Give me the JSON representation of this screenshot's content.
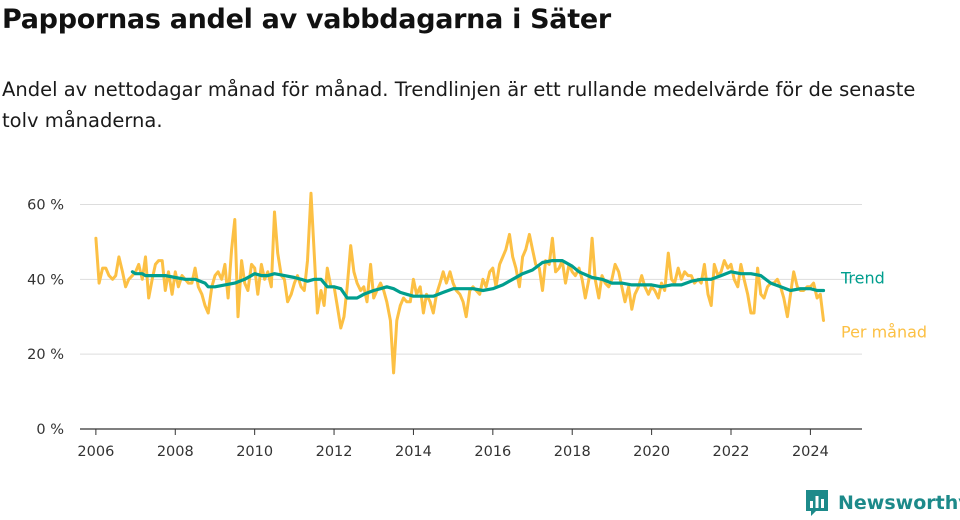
{
  "chart_data": {
    "type": "line",
    "title": "Pappornas andel av vabbdagarna i Säter",
    "subtitle": "Andel av nettodagar månad för månad. Trendlinjen är ett rullande medelvärde för de senaste tolv månaderna.",
    "xlim": [
      2005.6,
      2025.3
    ],
    "ylim": [
      0,
      62
    ],
    "x_ticks": [
      2006,
      2008,
      2010,
      2012,
      2014,
      2016,
      2018,
      2020,
      2022,
      2024
    ],
    "x_tick_labels": [
      "2006",
      "2008",
      "2010",
      "2012",
      "2014",
      "2016",
      "2018",
      "2020",
      "2022",
      "2024"
    ],
    "y_ticks": [
      0,
      20,
      40,
      60
    ],
    "y_tick_labels": [
      "0 %",
      "20 %",
      "40 %",
      "60 %"
    ],
    "grid": "horizontal",
    "series": [
      {
        "name": "Per månad",
        "color": "#fcc044",
        "points": [
          [
            2006.0,
            51
          ],
          [
            2006.08,
            39
          ],
          [
            2006.17,
            43
          ],
          [
            2006.25,
            43
          ],
          [
            2006.33,
            41
          ],
          [
            2006.42,
            40
          ],
          [
            2006.5,
            41
          ],
          [
            2006.58,
            46
          ],
          [
            2006.67,
            42
          ],
          [
            2006.75,
            38
          ],
          [
            2006.83,
            40
          ],
          [
            2006.92,
            41
          ],
          [
            2007.0,
            42
          ],
          [
            2007.08,
            44
          ],
          [
            2007.17,
            40
          ],
          [
            2007.25,
            46
          ],
          [
            2007.33,
            35
          ],
          [
            2007.42,
            40
          ],
          [
            2007.5,
            44
          ],
          [
            2007.58,
            45
          ],
          [
            2007.67,
            45
          ],
          [
            2007.75,
            37
          ],
          [
            2007.83,
            42
          ],
          [
            2007.92,
            36
          ],
          [
            2008.0,
            42
          ],
          [
            2008.08,
            38
          ],
          [
            2008.17,
            41
          ],
          [
            2008.25,
            40
          ],
          [
            2008.33,
            39
          ],
          [
            2008.42,
            39
          ],
          [
            2008.5,
            43
          ],
          [
            2008.58,
            38
          ],
          [
            2008.67,
            36
          ],
          [
            2008.75,
            33
          ],
          [
            2008.83,
            31
          ],
          [
            2008.92,
            38
          ],
          [
            2009.0,
            41
          ],
          [
            2009.08,
            42
          ],
          [
            2009.17,
            40
          ],
          [
            2009.25,
            44
          ],
          [
            2009.33,
            35
          ],
          [
            2009.42,
            48
          ],
          [
            2009.5,
            56
          ],
          [
            2009.58,
            30
          ],
          [
            2009.67,
            45
          ],
          [
            2009.75,
            39
          ],
          [
            2009.83,
            37
          ],
          [
            2009.92,
            44
          ],
          [
            2010.0,
            43
          ],
          [
            2010.08,
            36
          ],
          [
            2010.17,
            44
          ],
          [
            2010.25,
            40
          ],
          [
            2010.33,
            42
          ],
          [
            2010.42,
            38
          ],
          [
            2010.5,
            58
          ],
          [
            2010.58,
            47
          ],
          [
            2010.67,
            41
          ],
          [
            2010.75,
            40
          ],
          [
            2010.83,
            34
          ],
          [
            2010.92,
            36
          ],
          [
            2011.0,
            39
          ],
          [
            2011.08,
            41
          ],
          [
            2011.17,
            38
          ],
          [
            2011.25,
            37
          ],
          [
            2011.33,
            45
          ],
          [
            2011.42,
            63
          ],
          [
            2011.5,
            47
          ],
          [
            2011.58,
            31
          ],
          [
            2011.67,
            37
          ],
          [
            2011.75,
            33
          ],
          [
            2011.83,
            43
          ],
          [
            2011.92,
            38
          ],
          [
            2012.0,
            38
          ],
          [
            2012.08,
            33
          ],
          [
            2012.17,
            27
          ],
          [
            2012.25,
            30
          ],
          [
            2012.33,
            38
          ],
          [
            2012.42,
            49
          ],
          [
            2012.5,
            42
          ],
          [
            2012.58,
            39
          ],
          [
            2012.67,
            37
          ],
          [
            2012.75,
            38
          ],
          [
            2012.83,
            34
          ],
          [
            2012.92,
            44
          ],
          [
            2013.0,
            35
          ],
          [
            2013.08,
            37
          ],
          [
            2013.17,
            39
          ],
          [
            2013.25,
            37
          ],
          [
            2013.33,
            34
          ],
          [
            2013.42,
            29
          ],
          [
            2013.5,
            15
          ],
          [
            2013.58,
            29
          ],
          [
            2013.67,
            33
          ],
          [
            2013.75,
            35
          ],
          [
            2013.83,
            34
          ],
          [
            2013.92,
            34
          ],
          [
            2014.0,
            40
          ],
          [
            2014.08,
            36
          ],
          [
            2014.17,
            38
          ],
          [
            2014.25,
            31
          ],
          [
            2014.33,
            36
          ],
          [
            2014.42,
            34
          ],
          [
            2014.5,
            31
          ],
          [
            2014.58,
            36
          ],
          [
            2014.67,
            39
          ],
          [
            2014.75,
            42
          ],
          [
            2014.83,
            39
          ],
          [
            2014.92,
            42
          ],
          [
            2015.0,
            39
          ],
          [
            2015.08,
            37
          ],
          [
            2015.17,
            36
          ],
          [
            2015.25,
            34
          ],
          [
            2015.33,
            30
          ],
          [
            2015.42,
            37
          ],
          [
            2015.5,
            38
          ],
          [
            2015.58,
            37
          ],
          [
            2015.67,
            36
          ],
          [
            2015.75,
            40
          ],
          [
            2015.83,
            38
          ],
          [
            2015.92,
            42
          ],
          [
            2016.0,
            43
          ],
          [
            2016.08,
            38
          ],
          [
            2016.17,
            44
          ],
          [
            2016.25,
            46
          ],
          [
            2016.33,
            48
          ],
          [
            2016.42,
            52
          ],
          [
            2016.5,
            46
          ],
          [
            2016.58,
            43
          ],
          [
            2016.67,
            38
          ],
          [
            2016.75,
            46
          ],
          [
            2016.83,
            48
          ],
          [
            2016.92,
            52
          ],
          [
            2017.0,
            48
          ],
          [
            2017.08,
            44
          ],
          [
            2017.17,
            43
          ],
          [
            2017.25,
            37
          ],
          [
            2017.33,
            45
          ],
          [
            2017.42,
            44
          ],
          [
            2017.5,
            51
          ],
          [
            2017.58,
            42
          ],
          [
            2017.67,
            43
          ],
          [
            2017.75,
            45
          ],
          [
            2017.83,
            39
          ],
          [
            2017.92,
            44
          ],
          [
            2018.0,
            42
          ],
          [
            2018.08,
            41
          ],
          [
            2018.17,
            43
          ],
          [
            2018.25,
            40
          ],
          [
            2018.33,
            35
          ],
          [
            2018.42,
            40
          ],
          [
            2018.5,
            51
          ],
          [
            2018.58,
            40
          ],
          [
            2018.67,
            35
          ],
          [
            2018.75,
            41
          ],
          [
            2018.83,
            39
          ],
          [
            2018.92,
            38
          ],
          [
            2019.0,
            40
          ],
          [
            2019.08,
            44
          ],
          [
            2019.17,
            42
          ],
          [
            2019.25,
            38
          ],
          [
            2019.33,
            34
          ],
          [
            2019.42,
            38
          ],
          [
            2019.5,
            32
          ],
          [
            2019.58,
            36
          ],
          [
            2019.67,
            38
          ],
          [
            2019.75,
            41
          ],
          [
            2019.83,
            38
          ],
          [
            2019.92,
            36
          ],
          [
            2020.0,
            38
          ],
          [
            2020.08,
            37
          ],
          [
            2020.17,
            35
          ],
          [
            2020.25,
            39
          ],
          [
            2020.33,
            37
          ],
          [
            2020.42,
            47
          ],
          [
            2020.5,
            40
          ],
          [
            2020.58,
            39
          ],
          [
            2020.67,
            43
          ],
          [
            2020.75,
            40
          ],
          [
            2020.83,
            42
          ],
          [
            2020.92,
            41
          ],
          [
            2021.0,
            41
          ],
          [
            2021.08,
            39
          ],
          [
            2021.17,
            40
          ],
          [
            2021.25,
            39
          ],
          [
            2021.33,
            44
          ],
          [
            2021.42,
            36
          ],
          [
            2021.5,
            33
          ],
          [
            2021.58,
            44
          ],
          [
            2021.67,
            41
          ],
          [
            2021.75,
            42
          ],
          [
            2021.83,
            45
          ],
          [
            2021.92,
            43
          ],
          [
            2022.0,
            44
          ],
          [
            2022.08,
            40
          ],
          [
            2022.17,
            38
          ],
          [
            2022.25,
            44
          ],
          [
            2022.33,
            40
          ],
          [
            2022.42,
            36
          ],
          [
            2022.5,
            31
          ],
          [
            2022.58,
            31
          ],
          [
            2022.67,
            43
          ],
          [
            2022.75,
            36
          ],
          [
            2022.83,
            35
          ],
          [
            2022.92,
            38
          ],
          [
            2023.0,
            39
          ],
          [
            2023.08,
            39
          ],
          [
            2023.17,
            40
          ],
          [
            2023.25,
            38
          ],
          [
            2023.33,
            35
          ],
          [
            2023.42,
            30
          ],
          [
            2023.5,
            36
          ],
          [
            2023.58,
            42
          ],
          [
            2023.67,
            38
          ],
          [
            2023.75,
            37
          ],
          [
            2023.83,
            37
          ],
          [
            2023.92,
            38
          ],
          [
            2024.0,
            38
          ],
          [
            2024.08,
            39
          ],
          [
            2024.17,
            35
          ],
          [
            2024.25,
            36
          ],
          [
            2024.33,
            29
          ]
        ]
      },
      {
        "name": "Trend",
        "color": "#009e8e",
        "points": [
          [
            2006.92,
            42
          ],
          [
            2007.0,
            41.5
          ],
          [
            2007.17,
            41.5
          ],
          [
            2007.25,
            41
          ],
          [
            2007.5,
            41
          ],
          [
            2007.75,
            41
          ],
          [
            2008.0,
            40.5
          ],
          [
            2008.25,
            40
          ],
          [
            2008.5,
            40
          ],
          [
            2008.75,
            39
          ],
          [
            2008.83,
            38
          ],
          [
            2009.0,
            38
          ],
          [
            2009.25,
            38.5
          ],
          [
            2009.5,
            39
          ],
          [
            2009.75,
            40
          ],
          [
            2010.0,
            41.5
          ],
          [
            2010.17,
            41
          ],
          [
            2010.33,
            41
          ],
          [
            2010.5,
            41.5
          ],
          [
            2010.75,
            41
          ],
          [
            2011.0,
            40.5
          ],
          [
            2011.17,
            40
          ],
          [
            2011.33,
            39.5
          ],
          [
            2011.5,
            40
          ],
          [
            2011.67,
            40
          ],
          [
            2011.83,
            38
          ],
          [
            2012.0,
            38
          ],
          [
            2012.17,
            37.5
          ],
          [
            2012.33,
            35
          ],
          [
            2012.58,
            35
          ],
          [
            2012.75,
            36
          ],
          [
            2013.0,
            37
          ],
          [
            2013.17,
            37.5
          ],
          [
            2013.33,
            38
          ],
          [
            2013.5,
            37.5
          ],
          [
            2013.67,
            36.5
          ],
          [
            2013.83,
            36
          ],
          [
            2014.0,
            35.5
          ],
          [
            2014.17,
            35.5
          ],
          [
            2014.33,
            35.5
          ],
          [
            2014.5,
            35.5
          ],
          [
            2014.75,
            36.5
          ],
          [
            2015.0,
            37.5
          ],
          [
            2015.25,
            37.5
          ],
          [
            2015.5,
            37.5
          ],
          [
            2015.75,
            37
          ],
          [
            2016.0,
            37.5
          ],
          [
            2016.25,
            38.5
          ],
          [
            2016.5,
            40
          ],
          [
            2016.75,
            41.5
          ],
          [
            2017.0,
            42.5
          ],
          [
            2017.25,
            44.5
          ],
          [
            2017.5,
            45
          ],
          [
            2017.75,
            45
          ],
          [
            2018.0,
            43.5
          ],
          [
            2018.17,
            42
          ],
          [
            2018.5,
            40.5
          ],
          [
            2018.75,
            40
          ],
          [
            2019.0,
            39
          ],
          [
            2019.25,
            39
          ],
          [
            2019.5,
            38.5
          ],
          [
            2019.75,
            38.5
          ],
          [
            2020.0,
            38.5
          ],
          [
            2020.25,
            38
          ],
          [
            2020.5,
            38.5
          ],
          [
            2020.75,
            38.5
          ],
          [
            2021.0,
            39.5
          ],
          [
            2021.25,
            40
          ],
          [
            2021.5,
            40
          ],
          [
            2021.75,
            41
          ],
          [
            2022.0,
            42
          ],
          [
            2022.25,
            41.5
          ],
          [
            2022.5,
            41.5
          ],
          [
            2022.75,
            41
          ],
          [
            2023.0,
            39
          ],
          [
            2023.25,
            38
          ],
          [
            2023.5,
            37
          ],
          [
            2023.75,
            37.5
          ],
          [
            2024.0,
            37.5
          ],
          [
            2024.17,
            37
          ],
          [
            2024.33,
            37
          ]
        ]
      }
    ]
  },
  "brand": {
    "name": "Newsworthy",
    "color": "#1d8a8a",
    "icon": "bar-chart-speech-bubble-icon"
  }
}
